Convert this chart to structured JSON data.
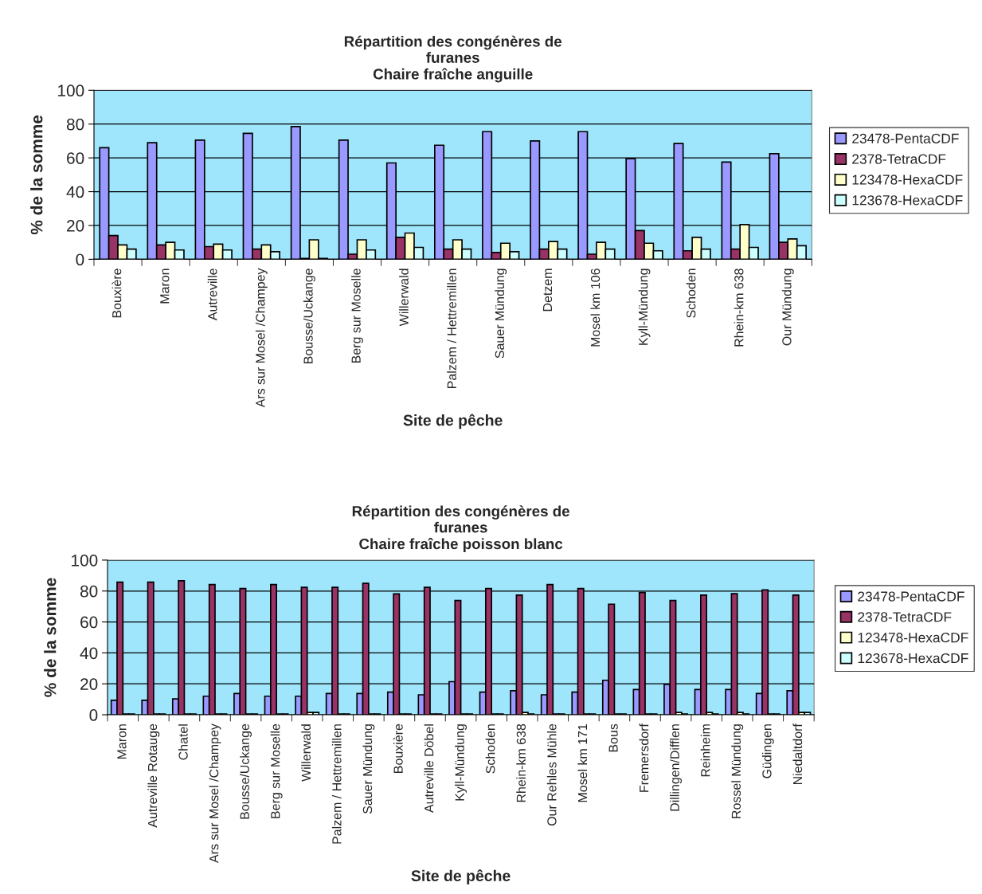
{
  "chart_data": [
    {
      "type": "bar",
      "title": "Répartition des congénères de\nfuranes\nChaire fraîche anguille",
      "xlabel": "Site de pêche",
      "ylabel": "% de la somme",
      "categories": [
        "Bouxière",
        "Maron",
        "Autreville",
        "Ars sur Mosel /Champey",
        "Bousse/Uckange",
        "Berg sur Moselle",
        "Willerwald",
        "Palzem / Hettremillen",
        "Sauer Mündung",
        "Detzem",
        "Mosel km 106",
        "Kyll-Mündung",
        "Schoden",
        "Rhein-km 638",
        "Our Mündung"
      ],
      "series": [
        {
          "name": "23478-PentaCDF",
          "color": "#9999ff",
          "values": [
            66,
            69,
            70.5,
            74.5,
            78.5,
            70.5,
            57,
            67.5,
            75.5,
            70,
            75.5,
            59.5,
            68.5,
            57.5,
            62.5
          ]
        },
        {
          "name": "2378-TetraCDF",
          "color": "#993366",
          "values": [
            14,
            8.5,
            7.5,
            6,
            0.5,
            3,
            13,
            6,
            4,
            6,
            3,
            17,
            5,
            6,
            10
          ]
        },
        {
          "name": "123478-HexaCDF",
          "color": "#ffffcc",
          "values": [
            8.5,
            10,
            9,
            8.5,
            11.5,
            11.5,
            15.5,
            11.5,
            9.5,
            10.5,
            10,
            9.5,
            13,
            20.5,
            12
          ]
        },
        {
          "name": "123678-HexaCDF",
          "color": "#ccffff",
          "values": [
            6,
            5.5,
            5.5,
            4.5,
            0.5,
            5.5,
            7,
            6,
            4.5,
            6,
            6,
            5,
            6,
            7,
            8
          ]
        }
      ],
      "ylim": [
        0,
        100
      ],
      "yticks": [
        0,
        20,
        40,
        60,
        80,
        100
      ],
      "grid": "y",
      "legend": "right"
    },
    {
      "type": "bar",
      "title": "Répartition des congénères de\nfuranes\nChaire fraîche poisson blanc",
      "xlabel": "Site de pêche",
      "ylabel": "% de la somme",
      "categories": [
        "Maron",
        "Autreville Rotauge",
        "Chatel",
        "Ars sur Mosel /Champey",
        "Bousse/Uckange",
        "Berg sur Moselle",
        "Willerwald",
        "Palzem / Hettremillen",
        "Sauer Mündung",
        "Bouxière",
        "Autreville Döbel",
        "Kyll-Mündung",
        "Schoden",
        "Rhein-km 638",
        "Our Rehles Mühle",
        "Mosel km 171",
        "Bous",
        "Fremersdorf",
        "Dillingen/Difflen",
        "Reinheim",
        "Rossel Mündung",
        "Güdingen",
        "Niedaltdorf"
      ],
      "series": [
        {
          "name": "23478-PentaCDF",
          "color": "#9999ff",
          "values": [
            9.4,
            9.4,
            10.3,
            12,
            13.7,
            12,
            12,
            13.7,
            13.7,
            14.6,
            12.9,
            21.4,
            14.6,
            15.5,
            12.9,
            14.6,
            22.3,
            16.3,
            19.7,
            16.3,
            16.3,
            13.7,
            15.5
          ]
        },
        {
          "name": "2378-TetraCDF",
          "color": "#993366",
          "values": [
            85.7,
            85.7,
            86.6,
            84.2,
            81.6,
            84.2,
            82.4,
            82.4,
            85,
            78.1,
            82.4,
            73.9,
            81.6,
            77.4,
            84.2,
            81.6,
            71.5,
            79,
            73.9,
            77.4,
            78.3,
            80.7,
            77.4
          ]
        },
        {
          "name": "123478-HexaCDF",
          "color": "#ffffcc",
          "values": [
            0.5,
            0.5,
            0.5,
            0.5,
            0.5,
            0.5,
            1.5,
            0.5,
            0.5,
            0.5,
            0.5,
            0.5,
            0.5,
            1.5,
            0.5,
            0.5,
            0.5,
            0.5,
            1.5,
            1.5,
            1.5,
            0.5,
            1.5
          ]
        },
        {
          "name": "123678-HexaCDF",
          "color": "#ccffff",
          "values": [
            0.5,
            0.5,
            0.5,
            0.5,
            0.5,
            0.5,
            1.5,
            0.5,
            0.5,
            0.5,
            0.5,
            0.5,
            0.5,
            0.5,
            0.5,
            0.5,
            0.5,
            0.5,
            0.5,
            0.5,
            0.5,
            0.5,
            1.5
          ]
        }
      ],
      "ylim": [
        0,
        100
      ],
      "yticks": [
        0,
        20,
        40,
        60,
        80,
        100
      ],
      "grid": "y",
      "legend": "right"
    }
  ]
}
